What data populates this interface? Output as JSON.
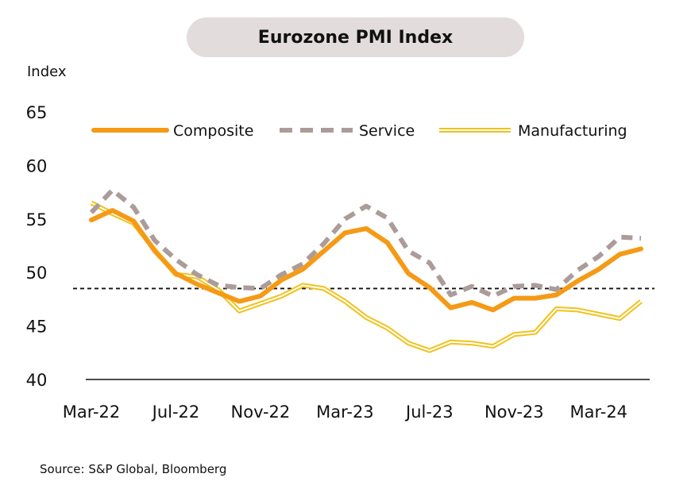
{
  "title": "Eurozone PMI Index",
  "y_unit": "Index",
  "source": "Source: S&P Global,  Bloomberg",
  "colors": {
    "composite": "#f59a16",
    "service": "#ab9c9a",
    "manufacturing": "#f2c21b",
    "reference_line": "#111111",
    "axis": "#111111",
    "title_bg": "#e3dcdc"
  },
  "chart_data": {
    "type": "line",
    "title": "Eurozone PMI Index",
    "ylabel": "Index",
    "xlabel": "",
    "ylim": [
      40,
      65
    ],
    "yticks": [
      40,
      45,
      50,
      55,
      60,
      65
    ],
    "xticks": [
      "Mar-22",
      "Jul-22",
      "Nov-22",
      "Mar-23",
      "Jul-23",
      "Nov-23",
      "Mar-24"
    ],
    "legend_position": "top",
    "grid": false,
    "reference_line": 48.5,
    "x": [
      "Mar-22",
      "Apr-22",
      "May-22",
      "Jun-22",
      "Jul-22",
      "Aug-22",
      "Sep-22",
      "Oct-22",
      "Nov-22",
      "Dec-22",
      "Jan-23",
      "Feb-23",
      "Mar-23",
      "Apr-23",
      "May-23",
      "Jun-23",
      "Jul-23",
      "Aug-23",
      "Sep-23",
      "Oct-23",
      "Nov-23",
      "Dec-23",
      "Jan-24",
      "Feb-24",
      "Mar-24",
      "Apr-24",
      "May-24"
    ],
    "series": [
      {
        "name": "Composite",
        "key": "composite",
        "style": "solid",
        "values": [
          54.9,
          55.8,
          54.8,
          52.0,
          49.9,
          48.9,
          48.1,
          47.3,
          47.8,
          49.3,
          50.3,
          52.0,
          53.7,
          54.1,
          52.8,
          49.9,
          48.6,
          46.7,
          47.2,
          46.5,
          47.6,
          47.6,
          47.9,
          49.2,
          50.3,
          51.7,
          52.2
        ]
      },
      {
        "name": "Service",
        "key": "service",
        "style": "dashed",
        "values": [
          55.6,
          57.7,
          56.1,
          53.0,
          51.2,
          49.8,
          48.8,
          48.6,
          48.5,
          49.8,
          50.8,
          52.7,
          55.0,
          56.2,
          55.1,
          52.0,
          50.9,
          47.9,
          48.7,
          47.8,
          48.7,
          48.8,
          48.4,
          50.2,
          51.5,
          53.3,
          53.2
        ]
      },
      {
        "name": "Manufacturing",
        "key": "manufacturing",
        "style": "double",
        "values": [
          56.5,
          55.5,
          54.6,
          52.1,
          49.8,
          49.6,
          48.4,
          46.4,
          47.1,
          47.8,
          48.8,
          48.5,
          47.3,
          45.8,
          44.8,
          43.4,
          42.7,
          43.5,
          43.4,
          43.1,
          44.2,
          44.4,
          46.6,
          46.5,
          46.1,
          45.7,
          47.3
        ]
      }
    ]
  }
}
